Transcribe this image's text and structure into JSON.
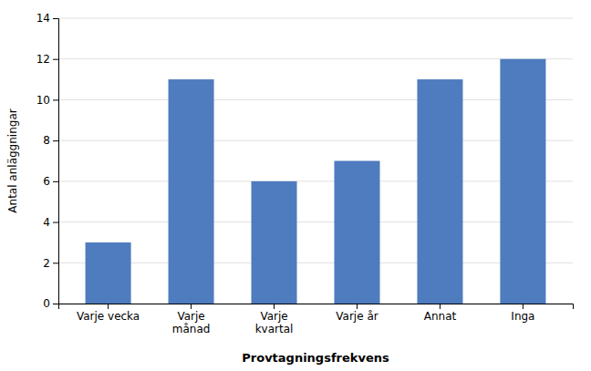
{
  "chart_data": {
    "type": "bar",
    "categories": [
      "Varje vecka",
      "Varje\nmånad",
      "Varje\nkvartal",
      "Varje år",
      "Annat",
      "Inga"
    ],
    "values": [
      3,
      11,
      6,
      7,
      11,
      12
    ],
    "color": "#4f7bbf",
    "xlabel": "Provtagningsfrekvens",
    "ylabel": "Antal anläggningar",
    "ylim": [
      0,
      14
    ],
    "yticks": [
      0,
      2,
      4,
      6,
      8,
      10,
      12,
      14
    ],
    "grid": true
  }
}
